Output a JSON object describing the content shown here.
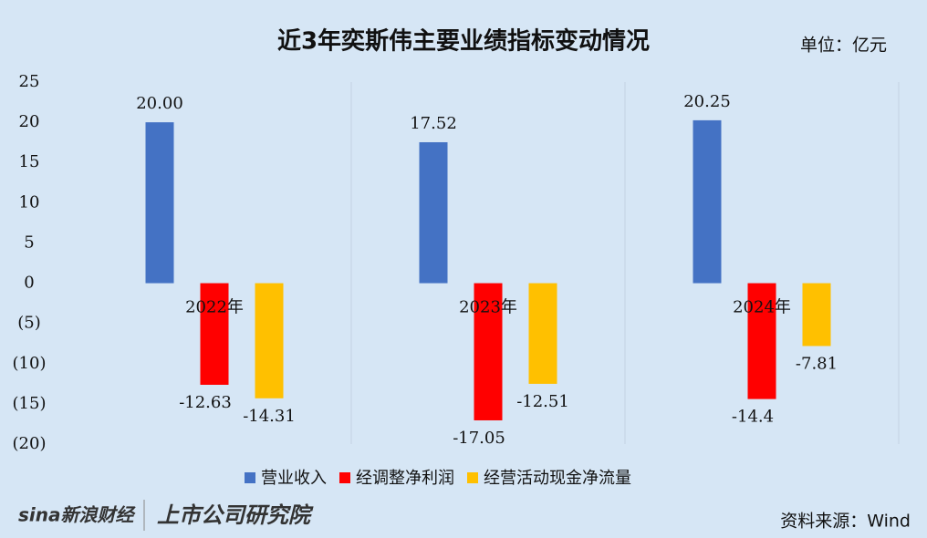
{
  "chart_data": {
    "type": "bar",
    "title": "近3年奕斯伟主要业绩指标变动情况",
    "unit": "单位：亿元",
    "source": "资料来源：Wind",
    "logos": [
      "sina新浪财经",
      "上市公司研究院"
    ],
    "categories": [
      "2022年",
      "2023年",
      "2024年"
    ],
    "series": [
      {
        "name": "营业收入",
        "color": "#4472c4",
        "values": [
          20.0,
          17.52,
          20.25
        ],
        "value_labels": [
          "20.00",
          "17.52",
          "20.25"
        ]
      },
      {
        "name": "经调整净利润",
        "color": "#ff0000",
        "values": [
          -12.63,
          -17.05,
          -14.4
        ]
      },
      {
        "name": "经营活动现金净流量",
        "color": "#ffc000",
        "values": [
          -14.31,
          -12.51,
          -7.81
        ]
      }
    ],
    "ylim": [
      -20,
      25
    ],
    "yticks": [
      25,
      20,
      15,
      10,
      5,
      0,
      {
        "value": -5,
        "label": "(5)"
      },
      {
        "value": -10,
        "label": "(10)"
      },
      {
        "value": -15,
        "label": "(15)"
      },
      {
        "value": -20,
        "label": "(20)"
      }
    ],
    "negative_tick_color": "#ff0000",
    "grid": false,
    "legend": "bottom"
  }
}
